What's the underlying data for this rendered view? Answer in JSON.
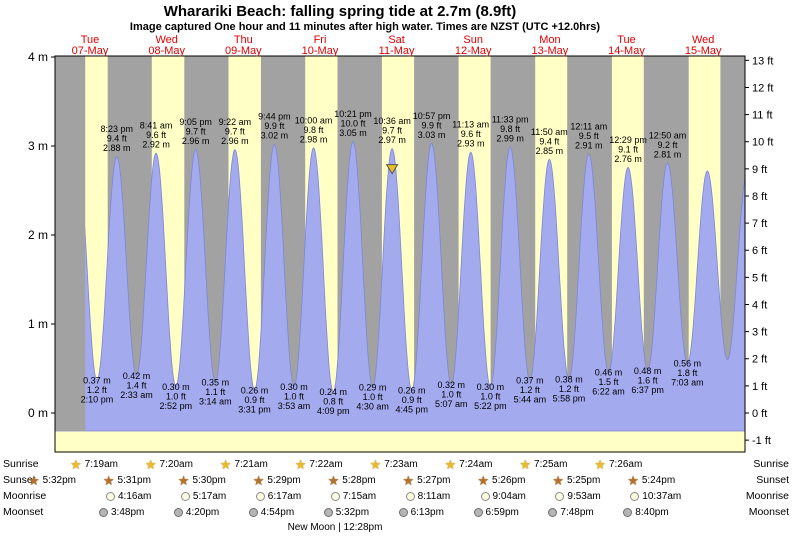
{
  "page": {
    "title": "Wharariki Beach: falling  spring tide at 2.7m (8.9ft)",
    "subtitle": "Image captured One hour and 11 minutes after high water. Times are NZST (UTC +12.0hrs)"
  },
  "chart_data": {
    "type": "area",
    "title": "Wharariki Beach tide curve",
    "timezone_note": "NZST (UTC +12.0hrs)",
    "x_axis_days": [
      {
        "weekday": "Tue",
        "date": "07-May"
      },
      {
        "weekday": "Wed",
        "date": "08-May"
      },
      {
        "weekday": "Thu",
        "date": "09-May"
      },
      {
        "weekday": "Fri",
        "date": "10-May"
      },
      {
        "weekday": "Sat",
        "date": "11-May"
      },
      {
        "weekday": "Sun",
        "date": "12-May"
      },
      {
        "weekday": "Mon",
        "date": "13-May"
      },
      {
        "weekday": "Tue",
        "date": "14-May"
      },
      {
        "weekday": "Wed",
        "date": "15-May"
      }
    ],
    "y_left_labels": [
      "4 m",
      "3 m",
      "2 m",
      "1 m",
      "0 m"
    ],
    "y_left_values": [
      4,
      3,
      2,
      1,
      0
    ],
    "y_right_labels": [
      "13 ft",
      "12 ft",
      "11 ft",
      "10 ft",
      "9 ft",
      "8 ft",
      "7 ft",
      "6 ft",
      "5 ft",
      "4 ft",
      "3 ft",
      "2 ft",
      "1 ft",
      "0 ft",
      "-1 ft"
    ],
    "y_right_values": [
      13,
      12,
      11,
      10,
      9,
      8,
      7,
      6,
      5,
      4,
      3,
      2,
      1,
      0,
      -1
    ],
    "ylim_m": [
      -0.44,
      4.02
    ],
    "extremes": [
      {
        "t": -4.3,
        "m": 2.75,
        "type": "high"
      },
      {
        "t": 1.9,
        "m": 0.45,
        "type": "low"
      },
      {
        "t": 8.08,
        "m": 2.85,
        "type": "high"
      },
      {
        "t": 14.167,
        "m": 0.37,
        "type": "low",
        "lines": [
          "0.37 m",
          "1.2 ft",
          "2:10 pm"
        ]
      },
      {
        "t": 20.383,
        "m": 2.88,
        "type": "high",
        "lines": [
          "8:23 pm",
          "9.4 ft",
          "2.88 m"
        ]
      },
      {
        "t": 26.55,
        "m": 0.42,
        "type": "low",
        "lines": [
          "0.42 m",
          "1.4 ft",
          "2:33 am"
        ]
      },
      {
        "t": 32.683,
        "m": 2.92,
        "type": "high",
        "lines": [
          "8:41 am",
          "9.6 ft",
          "2.92 m"
        ]
      },
      {
        "t": 38.867,
        "m": 0.3,
        "type": "low",
        "lines": [
          "0.30 m",
          "1.0 ft",
          "2:52 pm"
        ]
      },
      {
        "t": 45.083,
        "m": 2.96,
        "type": "high",
        "lines": [
          "9:05 pm",
          "9.7 ft",
          "2.96 m"
        ]
      },
      {
        "t": 51.233,
        "m": 0.35,
        "type": "low",
        "lines": [
          "0.35 m",
          "1.1 ft",
          "3:14 am"
        ]
      },
      {
        "t": 57.367,
        "m": 2.96,
        "type": "high",
        "lines": [
          "9:22 am",
          "9.7 ft",
          "2.96 m"
        ]
      },
      {
        "t": 63.517,
        "m": 0.26,
        "type": "low",
        "lines": [
          "0.26 m",
          "0.9 ft",
          "3:31 pm"
        ]
      },
      {
        "t": 69.733,
        "m": 3.02,
        "type": "high",
        "lines": [
          "9:44 pm",
          "9.9 ft",
          "3.02 m"
        ]
      },
      {
        "t": 75.883,
        "m": 0.3,
        "type": "low",
        "lines": [
          "0.30 m",
          "1.0 ft",
          "3:53 am"
        ]
      },
      {
        "t": 82.0,
        "m": 2.98,
        "type": "high",
        "lines": [
          "10:00 am",
          "9.8 ft",
          "2.98 m"
        ]
      },
      {
        "t": 88.15,
        "m": 0.24,
        "type": "low",
        "lines": [
          "0.24 m",
          "0.8 ft",
          "4:09 pm"
        ]
      },
      {
        "t": 94.35,
        "m": 3.05,
        "type": "high",
        "lines": [
          "10:21 pm",
          "10.0 ft",
          "3.05 m"
        ]
      },
      {
        "t": 100.5,
        "m": 0.29,
        "type": "low",
        "lines": [
          "0.29 m",
          "1.0 ft",
          "4:30 am"
        ]
      },
      {
        "t": 106.6,
        "m": 2.97,
        "type": "high",
        "lines": [
          "10:36 am",
          "9.7 ft",
          "2.97 m"
        ],
        "marker": true
      },
      {
        "t": 112.75,
        "m": 0.26,
        "type": "low",
        "lines": [
          "0.26 m",
          "0.9 ft",
          "4:45 pm"
        ]
      },
      {
        "t": 118.95,
        "m": 3.03,
        "type": "high",
        "lines": [
          "10:57 pm",
          "9.9 ft",
          "3.03 m"
        ]
      },
      {
        "t": 125.117,
        "m": 0.32,
        "type": "low",
        "lines": [
          "0.32 m",
          "1.0 ft",
          "5:07 am"
        ]
      },
      {
        "t": 131.217,
        "m": 2.93,
        "type": "high",
        "lines": [
          "11:13 am",
          "9.6 ft",
          "2.93 m"
        ]
      },
      {
        "t": 137.367,
        "m": 0.3,
        "type": "low",
        "lines": [
          "0.30 m",
          "1.0 ft",
          "5:22 pm"
        ]
      },
      {
        "t": 143.55,
        "m": 2.99,
        "type": "high",
        "lines": [
          "11:33 pm",
          "9.8 ft",
          "2.99 m"
        ]
      },
      {
        "t": 149.733,
        "m": 0.37,
        "type": "low",
        "lines": [
          "0.37 m",
          "1.2 ft",
          "5:44 am"
        ]
      },
      {
        "t": 155.833,
        "m": 2.85,
        "type": "high",
        "lines": [
          "11:50 am",
          "9.4 ft",
          "2.85 m"
        ]
      },
      {
        "t": 161.967,
        "m": 0.38,
        "type": "low",
        "lines": [
          "0.38 m",
          "1.2 ft",
          "5:58 pm"
        ]
      },
      {
        "t": 168.183,
        "m": 2.91,
        "type": "high",
        "lines": [
          "12:11 am",
          "9.5 ft",
          "2.91 m"
        ]
      },
      {
        "t": 174.367,
        "m": 0.46,
        "type": "low",
        "lines": [
          "0.46 m",
          "1.5 ft",
          "6:22 am"
        ]
      },
      {
        "t": 180.483,
        "m": 2.76,
        "type": "high",
        "lines": [
          "12:29 pm",
          "9.1 ft",
          "2.76 m"
        ]
      },
      {
        "t": 186.617,
        "m": 0.48,
        "type": "low",
        "lines": [
          "0.48 m",
          "1.6 ft",
          "6:37 pm"
        ]
      },
      {
        "t": 192.833,
        "m": 2.81,
        "type": "high",
        "lines": [
          "12:50 am",
          "9.2 ft",
          "2.81 m"
        ]
      },
      {
        "t": 199.05,
        "m": 0.56,
        "type": "low",
        "lines": [
          "0.56 m",
          "1.8 ft",
          "7:03 am"
        ]
      },
      {
        "t": 205.3,
        "m": 2.72,
        "type": "high"
      },
      {
        "t": 211.6,
        "m": 0.6,
        "type": "low"
      },
      {
        "t": 217.8,
        "m": 2.7,
        "type": "high"
      }
    ],
    "colors": {
      "plot_bg": "#ffffc6",
      "night_band": "#a2a2a2",
      "tide_fill": "#a4aaee",
      "tide_stroke": "#7d86d8",
      "day_label": "#e00000",
      "marker_fill": "#e8c020"
    }
  },
  "almanac": {
    "rows": [
      {
        "name": "sunrise",
        "label": "Sunrise",
        "icon": "sunrise-star-icon",
        "times": [
          "7:19am",
          "7:20am",
          "7:21am",
          "7:22am",
          "7:23am",
          "7:24am",
          "7:25am",
          "7:26am"
        ]
      },
      {
        "name": "sunset",
        "label": "Sunset",
        "icon": "sunset-star-icon",
        "times": [
          "5:32pm",
          "5:31pm",
          "5:30pm",
          "5:29pm",
          "5:28pm",
          "5:27pm",
          "5:26pm",
          "5:25pm",
          "5:24pm"
        ]
      },
      {
        "name": "moonrise",
        "label": "Moonrise",
        "icon": "moonrise-icon",
        "times": [
          "4:16am",
          "5:17am",
          "6:17am",
          "7:15am",
          "8:11am",
          "9:04am",
          "9:53am",
          "10:37am"
        ]
      },
      {
        "name": "moonset",
        "label": "Moonset",
        "icon": "moonset-icon",
        "times": [
          "3:48pm",
          "4:20pm",
          "4:54pm",
          "5:32pm",
          "6:13pm",
          "6:59pm",
          "7:48pm",
          "8:40pm"
        ]
      }
    ],
    "moon_phase": "New Moon | 12:28pm"
  }
}
